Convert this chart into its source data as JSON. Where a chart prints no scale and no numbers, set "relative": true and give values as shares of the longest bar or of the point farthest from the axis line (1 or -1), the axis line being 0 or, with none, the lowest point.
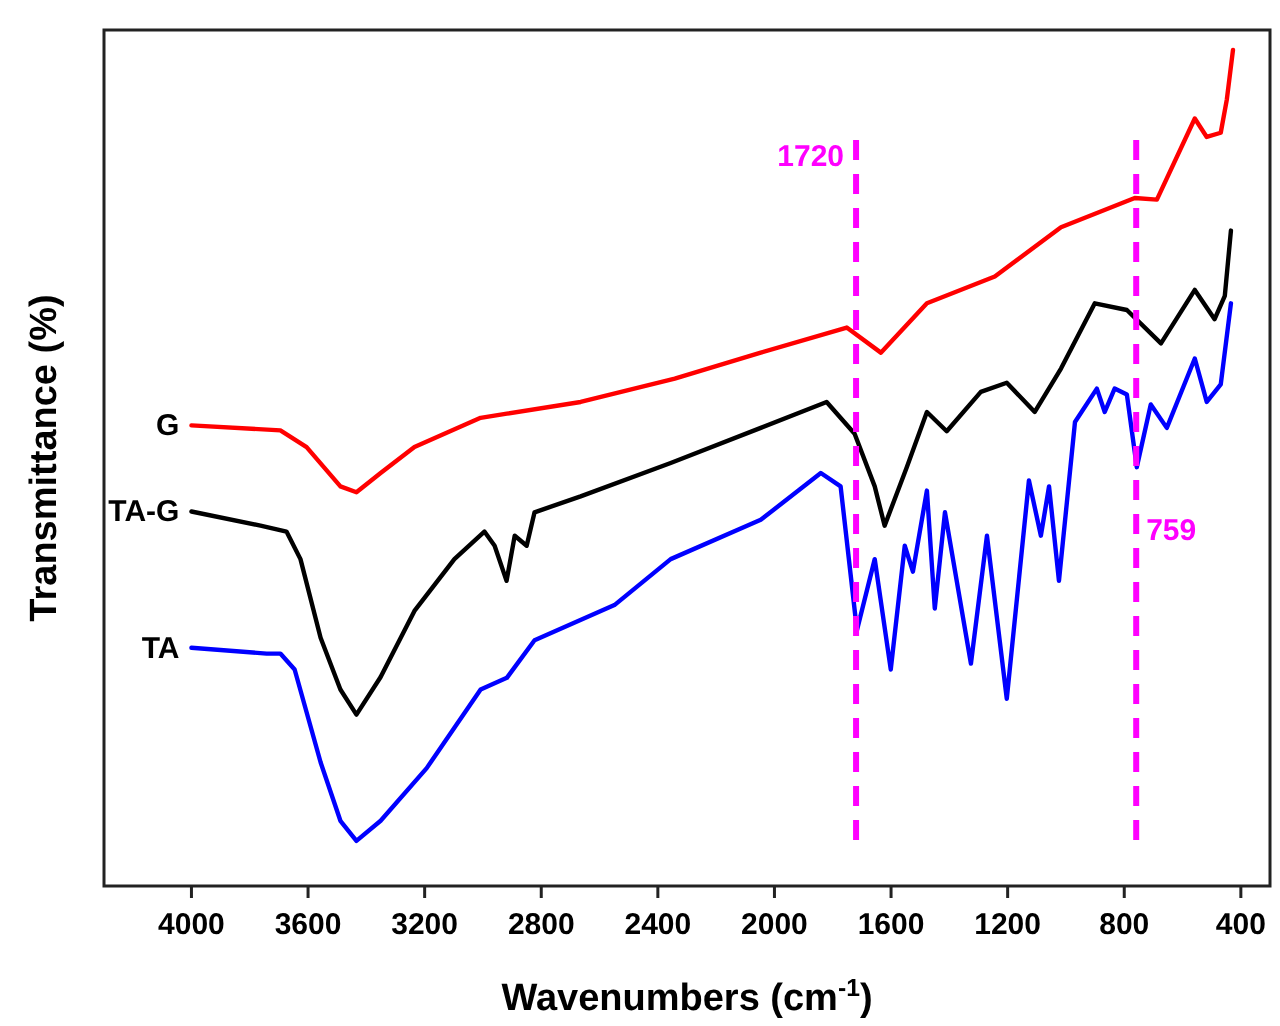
{
  "chart_data": {
    "type": "line",
    "relative": true,
    "xlabel": "Wavenumbers (cm$^{-1}$)",
    "ylabel": "Transmittance (%)",
    "xlim": [
      4300,
      300
    ],
    "xticks": [
      4000,
      3600,
      3200,
      2800,
      2400,
      2000,
      1600,
      1200,
      800,
      400
    ],
    "series": [
      {
        "name": "G",
        "color": "#ff0000",
        "x": [
          4000,
          3695,
          3605,
          3489,
          3434,
          3351,
          3235,
          3008,
          2918,
          2665,
          2342,
          2047,
          1752,
          1635,
          1477,
          1244,
          1017,
          764,
          688,
          558,
          517,
          469,
          448,
          427
        ],
        "values": [
          0.551,
          0.545,
          0.525,
          0.478,
          0.471,
          0.494,
          0.525,
          0.56,
          0.565,
          0.579,
          0.607,
          0.638,
          0.668,
          0.638,
          0.697,
          0.729,
          0.788,
          0.823,
          0.821,
          0.918,
          0.896,
          0.901,
          0.941,
          1
        ]
      },
      {
        "name": "TA-G",
        "color": "#000000",
        "x": [
          4000,
          3763,
          3674,
          3626,
          3557,
          3489,
          3434,
          3351,
          3235,
          3098,
          2995,
          2960,
          2919,
          2891,
          2850,
          2823,
          2665,
          2356,
          2047,
          1821,
          1725,
          1656,
          1622,
          1546,
          1477,
          1409,
          1292,
          1203,
          1107,
          1017,
          901,
          791,
          674,
          558,
          490,
          455,
          434
        ],
        "values": [
          0.448,
          0.431,
          0.424,
          0.391,
          0.297,
          0.235,
          0.205,
          0.25,
          0.329,
          0.391,
          0.424,
          0.407,
          0.365,
          0.419,
          0.407,
          0.447,
          0.466,
          0.506,
          0.548,
          0.579,
          0.541,
          0.478,
          0.431,
          0.501,
          0.567,
          0.544,
          0.591,
          0.602,
          0.567,
          0.619,
          0.697,
          0.689,
          0.649,
          0.713,
          0.678,
          0.706,
          0.784
        ]
      },
      {
        "name": "TA",
        "color": "#0000ff",
        "x": [
          4000,
          3742,
          3695,
          3646,
          3557,
          3489,
          3434,
          3351,
          3193,
          3008,
          2918,
          2823,
          2549,
          2356,
          2047,
          1841,
          1773,
          1717,
          1656,
          1601,
          1553,
          1525,
          1477,
          1450,
          1415,
          1326,
          1271,
          1203,
          1127,
          1086,
          1058,
          1024,
          969,
          894,
          867,
          833,
          791,
          757,
          709,
          654,
          558,
          517,
          469,
          434
        ],
        "values": [
          0.285,
          0.278,
          0.278,
          0.259,
          0.148,
          0.078,
          0.054,
          0.078,
          0.141,
          0.235,
          0.249,
          0.294,
          0.336,
          0.391,
          0.438,
          0.494,
          0.478,
          0.306,
          0.391,
          0.259,
          0.407,
          0.376,
          0.473,
          0.332,
          0.447,
          0.266,
          0.419,
          0.224,
          0.485,
          0.419,
          0.478,
          0.365,
          0.555,
          0.595,
          0.567,
          0.595,
          0.588,
          0.501,
          0.576,
          0.548,
          0.631,
          0.579,
          0.6,
          0.697
        ]
      }
    ],
    "ref_lines": [
      {
        "axis": "x",
        "value": 1720,
        "label": "1720",
        "color": "#ff00ff",
        "line_style": "dashed"
      },
      {
        "axis": "x",
        "value": 759,
        "label": "759",
        "color": "#ff00ff",
        "line_style": "dashed"
      }
    ],
    "grid": false,
    "line_style": "solid"
  }
}
